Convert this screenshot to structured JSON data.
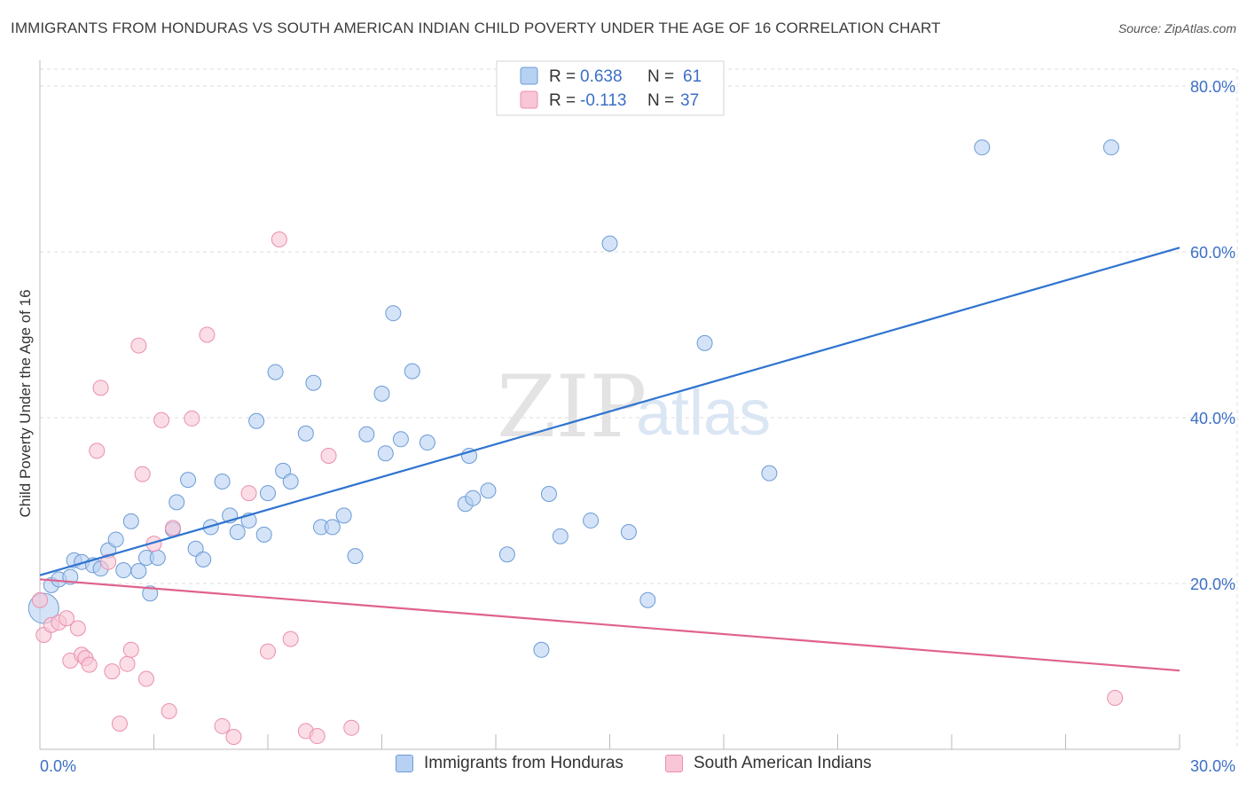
{
  "header": {
    "title": "IMMIGRANTS FROM HONDURAS VS SOUTH AMERICAN INDIAN CHILD POVERTY UNDER THE AGE OF 16 CORRELATION CHART",
    "source": "Source: ZipAtlas.com"
  },
  "watermark": {
    "zip": "ZIP",
    "atlas": "atlas"
  },
  "colors": {
    "blue_fill": "#b7d1f2",
    "blue_stroke": "#6b9bd6",
    "blue_line": "#2f74d0",
    "pink_fill": "#f8c6d6",
    "pink_stroke": "#ea8fae",
    "pink_line": "#e0628c",
    "axis_label": "#3b6fc6"
  },
  "legend_box": {
    "rows": [
      {
        "r_label": "R =",
        "r_value": "0.638",
        "n_label": "N =",
        "n_value": "61",
        "color": "blue"
      },
      {
        "r_label": "R =",
        "r_value": "-0.113",
        "n_label": "N =",
        "n_value": "37",
        "color": "pink"
      }
    ]
  },
  "chart_data": {
    "type": "scatter",
    "title": "IMMIGRANTS FROM HONDURAS VS SOUTH AMERICAN INDIAN CHILD POVERTY UNDER THE AGE OF 16 CORRELATION CHART",
    "xlabel": "",
    "ylabel": "Child Poverty Under the Age of 16",
    "xlim": [
      0,
      30
    ],
    "ylim": [
      0,
      80
    ],
    "x_tick_labels": [
      "0.0%",
      "30.0%"
    ],
    "y_ticks": [
      20,
      40,
      60,
      80
    ],
    "y_tick_labels": [
      "20.0%",
      "40.0%",
      "60.0%",
      "80.0%"
    ],
    "grid": true,
    "legend_position": "bottom",
    "series": [
      {
        "name": "Immigrants from Honduras",
        "color": "blue",
        "trend": {
          "x": [
            0,
            30
          ],
          "y": [
            21.0,
            60.5
          ]
        },
        "points": [
          [
            0.1,
            17.0
          ],
          [
            0.3,
            19.8
          ],
          [
            0.5,
            20.5
          ],
          [
            0.8,
            20.8
          ],
          [
            0.9,
            22.8
          ],
          [
            1.1,
            22.6
          ],
          [
            1.4,
            22.2
          ],
          [
            1.6,
            21.8
          ],
          [
            1.8,
            24.0
          ],
          [
            2.0,
            25.3
          ],
          [
            2.2,
            21.6
          ],
          [
            2.4,
            27.5
          ],
          [
            2.6,
            21.5
          ],
          [
            2.8,
            23.1
          ],
          [
            2.9,
            18.8
          ],
          [
            3.1,
            23.1
          ],
          [
            3.5,
            26.5
          ],
          [
            3.6,
            29.8
          ],
          [
            3.9,
            32.5
          ],
          [
            4.1,
            24.2
          ],
          [
            4.3,
            22.9
          ],
          [
            4.5,
            26.8
          ],
          [
            4.8,
            32.3
          ],
          [
            5.0,
            28.2
          ],
          [
            5.2,
            26.2
          ],
          [
            5.5,
            27.6
          ],
          [
            5.7,
            39.6
          ],
          [
            5.9,
            25.9
          ],
          [
            6.0,
            30.9
          ],
          [
            6.2,
            45.5
          ],
          [
            6.4,
            33.6
          ],
          [
            6.6,
            32.3
          ],
          [
            7.0,
            38.1
          ],
          [
            7.2,
            44.2
          ],
          [
            7.4,
            26.8
          ],
          [
            7.7,
            26.8
          ],
          [
            8.0,
            28.2
          ],
          [
            8.3,
            23.3
          ],
          [
            8.6,
            38.0
          ],
          [
            9.0,
            42.9
          ],
          [
            9.1,
            35.7
          ],
          [
            9.3,
            52.6
          ],
          [
            9.5,
            37.4
          ],
          [
            9.8,
            45.6
          ],
          [
            10.2,
            37.0
          ],
          [
            11.3,
            35.4
          ],
          [
            11.2,
            29.6
          ],
          [
            11.4,
            30.3
          ],
          [
            11.8,
            31.2
          ],
          [
            12.3,
            23.5
          ],
          [
            13.2,
            12.0
          ],
          [
            13.4,
            30.8
          ],
          [
            13.7,
            25.7
          ],
          [
            14.5,
            27.6
          ],
          [
            15.0,
            61.0
          ],
          [
            15.5,
            26.2
          ],
          [
            16.0,
            18.0
          ],
          [
            17.5,
            49.0
          ],
          [
            19.2,
            33.3
          ],
          [
            24.8,
            72.6
          ],
          [
            28.2,
            72.6
          ]
        ]
      },
      {
        "name": "South American Indians",
        "color": "pink",
        "trend": {
          "x": [
            0,
            30
          ],
          "y": [
            20.5,
            9.5
          ]
        },
        "points": [
          [
            0.0,
            18.0
          ],
          [
            0.1,
            13.8
          ],
          [
            0.3,
            15.0
          ],
          [
            0.5,
            15.3
          ],
          [
            0.7,
            15.8
          ],
          [
            0.8,
            10.7
          ],
          [
            1.0,
            14.6
          ],
          [
            1.1,
            11.4
          ],
          [
            1.2,
            11.0
          ],
          [
            1.3,
            10.2
          ],
          [
            1.5,
            36.0
          ],
          [
            1.6,
            43.6
          ],
          [
            1.8,
            22.6
          ],
          [
            1.9,
            9.4
          ],
          [
            2.1,
            3.1
          ],
          [
            2.3,
            10.3
          ],
          [
            2.4,
            12.0
          ],
          [
            2.6,
            48.7
          ],
          [
            2.7,
            33.2
          ],
          [
            2.8,
            8.5
          ],
          [
            3.0,
            24.8
          ],
          [
            3.2,
            39.7
          ],
          [
            3.4,
            4.6
          ],
          [
            3.5,
            26.7
          ],
          [
            4.0,
            39.9
          ],
          [
            4.4,
            50.0
          ],
          [
            4.8,
            2.8
          ],
          [
            5.1,
            1.5
          ],
          [
            5.5,
            30.9
          ],
          [
            6.0,
            11.8
          ],
          [
            6.3,
            61.5
          ],
          [
            6.6,
            13.3
          ],
          [
            7.0,
            2.2
          ],
          [
            7.3,
            1.6
          ],
          [
            7.6,
            35.4
          ],
          [
            8.2,
            2.6
          ],
          [
            28.3,
            6.2
          ]
        ]
      }
    ]
  }
}
